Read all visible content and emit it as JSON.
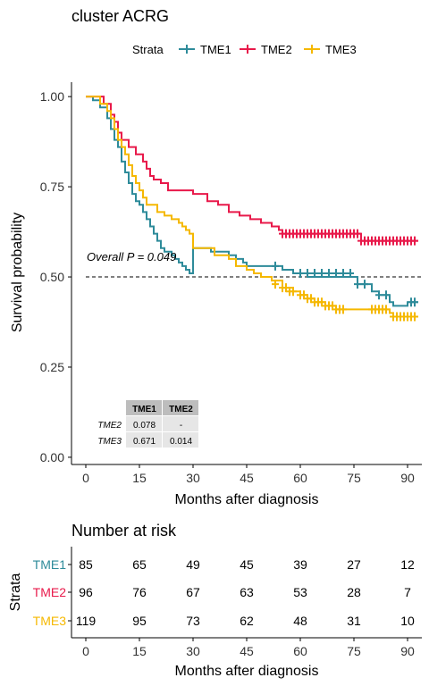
{
  "chart_data": [
    {
      "type": "line",
      "subtype": "kaplan-meier",
      "title": "cluster ACRG",
      "xlabel": "Months after diagnosis",
      "ylabel": "Survival probability",
      "xlim": [
        -4,
        94
      ],
      "ylim": [
        -0.02,
        1.04
      ],
      "xticks": [
        0,
        15,
        30,
        45,
        60,
        75,
        90
      ],
      "yticks": [
        0.0,
        0.25,
        0.5,
        0.75,
        1.0
      ],
      "ytick_labels": [
        "0.00",
        "0.25",
        "0.50",
        "0.75",
        "1.00"
      ],
      "legend": {
        "title": "Strata",
        "position": "top",
        "entries": [
          "TME1",
          "TME2",
          "TME3"
        ]
      },
      "grid": false,
      "reference_line": {
        "y": 0.5,
        "style": "dashed"
      },
      "annotation": "Overall P = 0.049",
      "pairwise_table": {
        "columns": [
          "TME1",
          "TME2"
        ],
        "rows": [
          {
            "label": "TME2",
            "values": [
              "0.078",
              "-"
            ]
          },
          {
            "label": "TME3",
            "values": [
              "0.671",
              "0.014"
            ]
          }
        ]
      },
      "series": [
        {
          "name": "TME1",
          "color": "#2E8B9A",
          "steps": [
            [
              0,
              1.0
            ],
            [
              2,
              0.99
            ],
            [
              4,
              0.97
            ],
            [
              6,
              0.94
            ],
            [
              7,
              0.91
            ],
            [
              8,
              0.88
            ],
            [
              9,
              0.86
            ],
            [
              10,
              0.82
            ],
            [
              11,
              0.79
            ],
            [
              12,
              0.76
            ],
            [
              13,
              0.73
            ],
            [
              14,
              0.71
            ],
            [
              15,
              0.7
            ],
            [
              16,
              0.68
            ],
            [
              17,
              0.66
            ],
            [
              18,
              0.64
            ],
            [
              19,
              0.62
            ],
            [
              20,
              0.6
            ],
            [
              21,
              0.58
            ],
            [
              22,
              0.57
            ],
            [
              24,
              0.56
            ],
            [
              25,
              0.55
            ],
            [
              26,
              0.54
            ],
            [
              27,
              0.53
            ],
            [
              28,
              0.52
            ],
            [
              29,
              0.51
            ],
            [
              30,
              0.58
            ],
            [
              35,
              0.57
            ],
            [
              40,
              0.56
            ],
            [
              42,
              0.55
            ],
            [
              44,
              0.54
            ],
            [
              45,
              0.53
            ],
            [
              50,
              0.53
            ],
            [
              55,
              0.52
            ],
            [
              58,
              0.51
            ],
            [
              60,
              0.51
            ],
            [
              62,
              0.5
            ],
            [
              70,
              0.5
            ],
            [
              75,
              0.5
            ],
            [
              76,
              0.48
            ],
            [
              79,
              0.48
            ],
            [
              80,
              0.46
            ],
            [
              82,
              0.45
            ],
            [
              85,
              0.43
            ],
            [
              86,
              0.42
            ],
            [
              88,
              0.42
            ],
            [
              90,
              0.43
            ],
            [
              93,
              0.43
            ]
          ],
          "censors": [
            [
              53,
              0.53
            ],
            [
              60,
              0.51
            ],
            [
              62,
              0.51
            ],
            [
              64,
              0.51
            ],
            [
              66,
              0.51
            ],
            [
              68,
              0.51
            ],
            [
              70,
              0.51
            ],
            [
              72,
              0.51
            ],
            [
              74,
              0.51
            ],
            [
              76,
              0.48
            ],
            [
              78,
              0.48
            ],
            [
              82,
              0.45
            ],
            [
              84,
              0.45
            ],
            [
              91,
              0.43
            ],
            [
              92,
              0.43
            ]
          ]
        },
        {
          "name": "TME2",
          "color": "#E8194A",
          "steps": [
            [
              0,
              1.0
            ],
            [
              5,
              0.98
            ],
            [
              7,
              0.95
            ],
            [
              8,
              0.93
            ],
            [
              9,
              0.9
            ],
            [
              10,
              0.88
            ],
            [
              12,
              0.86
            ],
            [
              14,
              0.84
            ],
            [
              16,
              0.82
            ],
            [
              17,
              0.8
            ],
            [
              18,
              0.78
            ],
            [
              19,
              0.77
            ],
            [
              21,
              0.76
            ],
            [
              23,
              0.74
            ],
            [
              27,
              0.74
            ],
            [
              30,
              0.73
            ],
            [
              34,
              0.71
            ],
            [
              37,
              0.7
            ],
            [
              40,
              0.68
            ],
            [
              43,
              0.67
            ],
            [
              46,
              0.66
            ],
            [
              49,
              0.65
            ],
            [
              52,
              0.64
            ],
            [
              54,
              0.63
            ],
            [
              55,
              0.62
            ],
            [
              75,
              0.62
            ],
            [
              77,
              0.6
            ],
            [
              93,
              0.6
            ]
          ],
          "censors": [
            [
              55,
              0.62
            ],
            [
              56,
              0.62
            ],
            [
              57,
              0.62
            ],
            [
              58,
              0.62
            ],
            [
              59,
              0.62
            ],
            [
              60,
              0.62
            ],
            [
              61,
              0.62
            ],
            [
              62,
              0.62
            ],
            [
              63,
              0.62
            ],
            [
              64,
              0.62
            ],
            [
              65,
              0.62
            ],
            [
              66,
              0.62
            ],
            [
              67,
              0.62
            ],
            [
              68,
              0.62
            ],
            [
              69,
              0.62
            ],
            [
              70,
              0.62
            ],
            [
              71,
              0.62
            ],
            [
              72,
              0.62
            ],
            [
              73,
              0.62
            ],
            [
              74,
              0.62
            ],
            [
              75,
              0.62
            ],
            [
              76,
              0.62
            ],
            [
              77,
              0.6
            ],
            [
              78,
              0.6
            ],
            [
              79,
              0.6
            ],
            [
              80,
              0.6
            ],
            [
              81,
              0.6
            ],
            [
              82,
              0.6
            ],
            [
              83,
              0.6
            ],
            [
              84,
              0.6
            ],
            [
              85,
              0.6
            ],
            [
              86,
              0.6
            ],
            [
              87,
              0.6
            ],
            [
              88,
              0.6
            ],
            [
              89,
              0.6
            ],
            [
              90,
              0.6
            ],
            [
              91,
              0.6
            ],
            [
              92,
              0.6
            ]
          ]
        },
        {
          "name": "TME3",
          "color": "#F5B800",
          "steps": [
            [
              0,
              1.0
            ],
            [
              4,
              0.98
            ],
            [
              6,
              0.96
            ],
            [
              7,
              0.94
            ],
            [
              8,
              0.91
            ],
            [
              9,
              0.88
            ],
            [
              10,
              0.86
            ],
            [
              11,
              0.84
            ],
            [
              12,
              0.81
            ],
            [
              13,
              0.78
            ],
            [
              14,
              0.76
            ],
            [
              15,
              0.74
            ],
            [
              16,
              0.72
            ],
            [
              17,
              0.7
            ],
            [
              19,
              0.7
            ],
            [
              20,
              0.68
            ],
            [
              22,
              0.67
            ],
            [
              24,
              0.66
            ],
            [
              26,
              0.65
            ],
            [
              27,
              0.64
            ],
            [
              28,
              0.63
            ],
            [
              29,
              0.62
            ],
            [
              30,
              0.58
            ],
            [
              36,
              0.56
            ],
            [
              40,
              0.55
            ],
            [
              42,
              0.53
            ],
            [
              45,
              0.52
            ],
            [
              47,
              0.51
            ],
            [
              49,
              0.5
            ],
            [
              52,
              0.49
            ],
            [
              55,
              0.47
            ],
            [
              58,
              0.46
            ],
            [
              60,
              0.45
            ],
            [
              62,
              0.44
            ],
            [
              64,
              0.43
            ],
            [
              67,
              0.42
            ],
            [
              70,
              0.41
            ],
            [
              78,
              0.41
            ],
            [
              80,
              0.41
            ],
            [
              85,
              0.4
            ],
            [
              86,
              0.39
            ],
            [
              88,
              0.39
            ],
            [
              93,
              0.39
            ]
          ],
          "censors": [
            [
              53,
              0.48
            ],
            [
              55,
              0.47
            ],
            [
              56,
              0.47
            ],
            [
              57,
              0.46
            ],
            [
              58,
              0.46
            ],
            [
              60,
              0.45
            ],
            [
              61,
              0.45
            ],
            [
              62,
              0.44
            ],
            [
              63,
              0.44
            ],
            [
              64,
              0.43
            ],
            [
              65,
              0.43
            ],
            [
              66,
              0.43
            ],
            [
              67,
              0.42
            ],
            [
              68,
              0.42
            ],
            [
              69,
              0.42
            ],
            [
              70,
              0.41
            ],
            [
              71,
              0.41
            ],
            [
              72,
              0.41
            ],
            [
              80,
              0.41
            ],
            [
              81,
              0.41
            ],
            [
              82,
              0.41
            ],
            [
              83,
              0.41
            ],
            [
              84,
              0.41
            ],
            [
              86,
              0.39
            ],
            [
              87,
              0.39
            ],
            [
              88,
              0.39
            ],
            [
              89,
              0.39
            ],
            [
              90,
              0.39
            ],
            [
              91,
              0.39
            ],
            [
              92,
              0.39
            ]
          ]
        }
      ]
    },
    {
      "type": "table",
      "title": "Number at risk",
      "xlabel": "Months after diagnosis",
      "ylabel": "Strata",
      "xticks": [
        0,
        15,
        30,
        45,
        60,
        75,
        90
      ],
      "rows": [
        {
          "name": "TME1",
          "color": "#2E8B9A",
          "values": [
            85,
            65,
            49,
            45,
            39,
            27,
            12
          ]
        },
        {
          "name": "TME2",
          "color": "#E8194A",
          "values": [
            96,
            76,
            67,
            63,
            53,
            28,
            7
          ]
        },
        {
          "name": "TME3",
          "color": "#F5B800",
          "values": [
            119,
            95,
            73,
            62,
            48,
            31,
            10
          ]
        }
      ]
    }
  ]
}
